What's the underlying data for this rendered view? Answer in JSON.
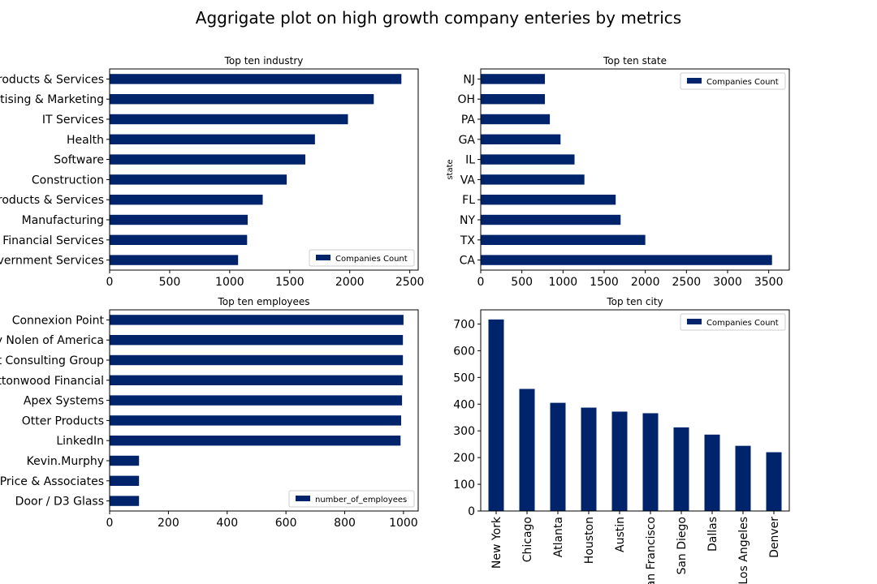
{
  "figure": {
    "title": "Aggrigate plot on high growth company enteries by metrics",
    "bar_color": "#00246b"
  },
  "chart_data": [
    {
      "type": "bar",
      "orientation": "horizontal",
      "title": "Top ten industry",
      "xlabel": "",
      "ylabel": "",
      "categories": [
        "Business Products & Services",
        "Advertising & Marketing",
        "IT Services",
        "Health",
        "Software",
        "Construction",
        "Consumer Products & Services",
        "Manufacturing",
        "Financial Services",
        "Government Services"
      ],
      "series": [
        {
          "name": "Companies Count",
          "values": [
            2430,
            2200,
            1985,
            1710,
            1630,
            1475,
            1275,
            1150,
            1145,
            1070
          ]
        }
      ],
      "xlim": [
        0,
        2570
      ],
      "xticks": [
        0,
        500,
        1000,
        1500,
        2000,
        2500
      ],
      "legend": "lower right",
      "grid": false
    },
    {
      "type": "bar",
      "orientation": "horizontal",
      "title": "Top ten state",
      "xlabel": "",
      "ylabel": "state",
      "categories": [
        "NJ",
        "OH",
        "PA",
        "GA",
        "IL",
        "VA",
        "FL",
        "NY",
        "TX",
        "CA"
      ],
      "series": [
        {
          "name": "Companies Count",
          "values": [
            780,
            780,
            840,
            970,
            1140,
            1260,
            1640,
            1700,
            2000,
            3540
          ]
        }
      ],
      "xlim": [
        0,
        3750
      ],
      "xticks": [
        0,
        500,
        1000,
        1500,
        2000,
        2500,
        3000,
        3500
      ],
      "legend": "upper right",
      "grid": false
    },
    {
      "type": "bar",
      "orientation": "horizontal",
      "title": "Top ten employees",
      "xlabel": "",
      "ylabel": "",
      "categories": [
        "Connexion Point",
        "Lowry Nolen of America",
        "Pivot Consulting Group",
        "Cottonwood Financial",
        "Apex Systems",
        "Otter Products",
        "LinkedIn",
        "Kevin.Murphy",
        "Price & Associates",
        "Door / D3 Glass"
      ],
      "series": [
        {
          "name": "number_of_employees",
          "values": [
            1000,
            998,
            998,
            997,
            995,
            992,
            990,
            100,
            100,
            100
          ]
        }
      ],
      "xlim": [
        0,
        1050
      ],
      "xticks": [
        0,
        200,
        400,
        600,
        800,
        1000
      ],
      "legend": "lower right",
      "grid": false
    },
    {
      "type": "bar",
      "orientation": "vertical",
      "title": "Top ten city",
      "xlabel": "",
      "ylabel": "",
      "categories": [
        "New York",
        "Chicago",
        "Atlanta",
        "Houston",
        "Austin",
        "San Francisco",
        "San Diego",
        "Dallas",
        "Los Angeles",
        "Denver"
      ],
      "series": [
        {
          "name": "Companies Count",
          "values": [
            717,
            457,
            405,
            387,
            372,
            366,
            313,
            286,
            244,
            220
          ]
        }
      ],
      "ylim": [
        0,
        753
      ],
      "yticks": [
        0,
        100,
        200,
        300,
        400,
        500,
        600,
        700
      ],
      "legend": "upper right",
      "grid": false
    }
  ]
}
